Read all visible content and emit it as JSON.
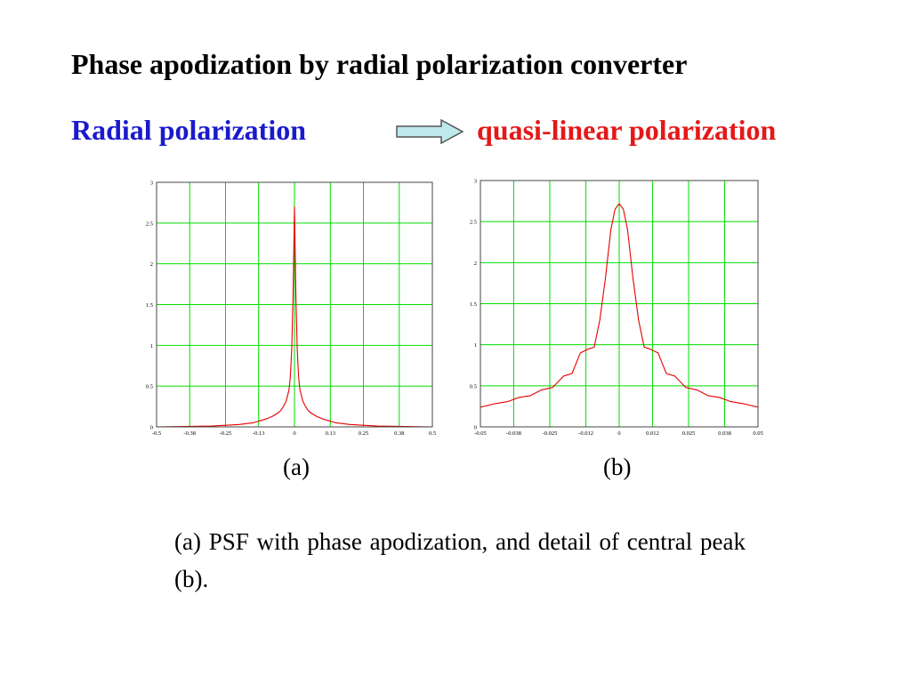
{
  "title": "Phase apodization by radial  polarization converter",
  "subtitle_left": "Radial polarization",
  "subtitle_right": "quasi-linear polarization",
  "panel_labels": [
    "(a)",
    "(b)"
  ],
  "caption": "(a) PSF with phase apodization, and detail of central peak (b).",
  "colors": {
    "grid": "#00dd00",
    "line": "#e60000",
    "subtitle_left": "#1a1acc",
    "subtitle_right": "#e41818",
    "arrow_fill": "#bfe8ec",
    "arrow_stroke": "#555555"
  },
  "chart_data": [
    {
      "type": "line",
      "id": "a",
      "xlim": [
        -0.5,
        0.5
      ],
      "ylim": [
        0,
        3
      ],
      "x_ticks": [
        -0.5,
        -0.38,
        -0.25,
        -0.13,
        0,
        0.13,
        0.25,
        0.38,
        0.5
      ],
      "x_tick_labels": [
        "-0.5",
        "-0.38",
        "-0.25",
        "-0.13",
        "0",
        "0.13",
        "0.25",
        "0.38",
        "0.5"
      ],
      "y_ticks": [
        0,
        0.5,
        1,
        1.5,
        2,
        2.5,
        3
      ],
      "y_tick_labels": [
        "0",
        "0.5",
        "1",
        "1.5",
        "2",
        "2.5",
        "3"
      ],
      "grid": true,
      "series": [
        {
          "x": [
            -0.5,
            -0.4,
            -0.3,
            -0.25,
            -0.2,
            -0.15,
            -0.12,
            -0.1,
            -0.08,
            -0.06,
            -0.05,
            -0.04,
            -0.03,
            -0.02,
            -0.015,
            -0.01,
            -0.005,
            0,
            0.005,
            0.01,
            0.015,
            0.02,
            0.03,
            0.04,
            0.05,
            0.06,
            0.08,
            0.1,
            0.12,
            0.15,
            0.2,
            0.25,
            0.3,
            0.4,
            0.5
          ],
          "y": [
            0.0,
            0.005,
            0.01,
            0.02,
            0.03,
            0.05,
            0.08,
            0.1,
            0.13,
            0.17,
            0.2,
            0.25,
            0.32,
            0.45,
            0.6,
            0.95,
            1.6,
            2.7,
            1.6,
            0.95,
            0.6,
            0.45,
            0.32,
            0.25,
            0.2,
            0.17,
            0.13,
            0.1,
            0.08,
            0.05,
            0.03,
            0.02,
            0.01,
            0.005,
            0.0
          ]
        }
      ]
    },
    {
      "type": "line",
      "id": "b",
      "xlim": [
        -0.05,
        0.05
      ],
      "ylim": [
        0,
        3
      ],
      "x_ticks": [
        -0.05,
        -0.038,
        -0.025,
        -0.012,
        0,
        0.012,
        0.025,
        0.038,
        0.05
      ],
      "x_tick_labels": [
        "-0.05",
        "-0.038",
        "-0.025",
        "-0.012",
        "0",
        "0.012",
        "0.025",
        "0.038",
        "0.05"
      ],
      "y_ticks": [
        0,
        0.5,
        1,
        1.5,
        2,
        2.5,
        3
      ],
      "y_tick_labels": [
        "0",
        "0.5",
        "1",
        "1.5",
        "2",
        "2.5",
        "3"
      ],
      "grid": true,
      "series": [
        {
          "x": [
            -0.05,
            -0.045,
            -0.04,
            -0.036,
            -0.032,
            -0.028,
            -0.024,
            -0.02,
            -0.017,
            -0.014,
            -0.011,
            -0.009,
            -0.007,
            -0.005,
            -0.003,
            -0.0015,
            0,
            0.0015,
            0.003,
            0.005,
            0.007,
            0.009,
            0.011,
            0.014,
            0.017,
            0.02,
            0.024,
            0.028,
            0.032,
            0.036,
            0.04,
            0.045,
            0.05
          ],
          "y": [
            0.24,
            0.28,
            0.31,
            0.36,
            0.38,
            0.45,
            0.48,
            0.62,
            0.65,
            0.9,
            0.95,
            0.97,
            1.3,
            1.8,
            2.4,
            2.65,
            2.72,
            2.65,
            2.4,
            1.8,
            1.3,
            0.97,
            0.95,
            0.9,
            0.65,
            0.62,
            0.48,
            0.45,
            0.38,
            0.36,
            0.31,
            0.28,
            0.24
          ]
        }
      ]
    }
  ]
}
